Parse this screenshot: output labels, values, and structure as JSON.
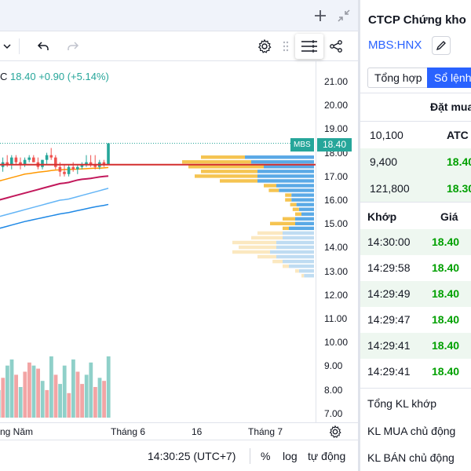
{
  "window": {
    "add_icon": "plus-icon",
    "collapse_icon": "collapse-arrows-icon"
  },
  "toolbar": {
    "undo_icon": "undo-icon",
    "redo_icon": "redo-icon",
    "settings_icon": "gear-icon",
    "drag_icon": "drag-handle-icon",
    "menu_icon": "hamburger-menu-icon",
    "share_icon": "share-icon"
  },
  "legend": {
    "symbol_fragment": "C",
    "price": "18.40",
    "change": "+0.90",
    "change_pct": "(+5.14%)",
    "color_up": "#26a69a"
  },
  "price_axis": {
    "ticks": [
      "21.00",
      "20.00",
      "19.00",
      "18.00",
      "17.00",
      "16.00",
      "15.00",
      "14.00",
      "13.00",
      "12.00",
      "11.00",
      "10.00",
      "9.00",
      "8.00",
      "7.00"
    ],
    "current_symbol": "MBS",
    "current_price": "18.40",
    "current_color": "#26a69a"
  },
  "time_axis": {
    "labels": [
      "ng Năm",
      "Tháng 6",
      "16",
      "Tháng 7"
    ],
    "settings_icon": "gear-icon"
  },
  "bottom_bar": {
    "time": "14:30:25 (UTC+7)",
    "percent": "%",
    "log": "log",
    "auto": "tự động"
  },
  "chart_data": {
    "type": "candlestick",
    "symbol": "MBS",
    "last_price": 18.4,
    "ylim": [
      7.0,
      21.0
    ],
    "ref_line": 17.5,
    "candles": [
      {
        "o": 17.2,
        "h": 17.5,
        "l": 16.9,
        "c": 17.4
      },
      {
        "o": 17.4,
        "h": 17.8,
        "l": 17.2,
        "c": 17.6
      },
      {
        "o": 17.6,
        "h": 17.9,
        "l": 17.4,
        "c": 17.5
      },
      {
        "o": 17.5,
        "h": 17.9,
        "l": 17.3,
        "c": 17.8
      },
      {
        "o": 17.8,
        "h": 17.9,
        "l": 17.5,
        "c": 17.6
      },
      {
        "o": 17.6,
        "h": 17.8,
        "l": 17.3,
        "c": 17.5
      },
      {
        "o": 17.5,
        "h": 17.8,
        "l": 17.4,
        "c": 17.7
      },
      {
        "o": 17.7,
        "h": 17.9,
        "l": 17.6,
        "c": 17.8
      },
      {
        "o": 17.8,
        "h": 17.9,
        "l": 17.6,
        "c": 17.6
      },
      {
        "o": 17.6,
        "h": 17.8,
        "l": 17.3,
        "c": 17.4
      },
      {
        "o": 17.4,
        "h": 17.7,
        "l": 17.3,
        "c": 17.7
      },
      {
        "o": 17.7,
        "h": 18.0,
        "l": 17.5,
        "c": 17.9
      },
      {
        "o": 17.9,
        "h": 18.2,
        "l": 17.7,
        "c": 17.8
      },
      {
        "o": 17.8,
        "h": 17.9,
        "l": 17.3,
        "c": 17.4
      },
      {
        "o": 17.4,
        "h": 17.6,
        "l": 17.0,
        "c": 17.2
      },
      {
        "o": 17.2,
        "h": 17.5,
        "l": 17.0,
        "c": 17.1
      },
      {
        "o": 17.1,
        "h": 17.5,
        "l": 17.0,
        "c": 17.4
      },
      {
        "o": 17.4,
        "h": 17.6,
        "l": 17.2,
        "c": 17.3
      },
      {
        "o": 17.3,
        "h": 17.5,
        "l": 17.1,
        "c": 17.4
      },
      {
        "o": 17.4,
        "h": 17.6,
        "l": 17.3,
        "c": 17.5
      },
      {
        "o": 17.5,
        "h": 17.9,
        "l": 17.4,
        "c": 17.6
      },
      {
        "o": 17.6,
        "h": 17.9,
        "l": 17.4,
        "c": 17.5
      },
      {
        "o": 17.5,
        "h": 17.9,
        "l": 17.3,
        "c": 17.4
      },
      {
        "o": 17.4,
        "h": 17.7,
        "l": 17.3,
        "c": 17.6
      },
      {
        "o": 17.6,
        "h": 17.7,
        "l": 17.4,
        "c": 17.5
      },
      {
        "o": 17.5,
        "h": 18.4,
        "l": 17.5,
        "c": 18.4
      }
    ],
    "ma_lines": [
      {
        "color": "#ff9800",
        "values": [
          16.8,
          16.85,
          16.9,
          16.95,
          17.0,
          17.05,
          17.1,
          17.12,
          17.15,
          17.18,
          17.2,
          17.22,
          17.25,
          17.27,
          17.28,
          17.29,
          17.3,
          17.3,
          17.31,
          17.32,
          17.33,
          17.34,
          17.35,
          17.35,
          17.36,
          17.38
        ]
      },
      {
        "color": "#c2185b",
        "values": [
          16.0,
          16.05,
          16.1,
          16.15,
          16.2,
          16.25,
          16.3,
          16.35,
          16.4,
          16.45,
          16.5,
          16.55,
          16.6,
          16.65,
          16.7,
          16.72,
          16.75,
          16.8,
          16.85,
          16.88,
          16.9,
          16.92,
          16.95,
          16.98,
          17.0,
          17.02
        ]
      },
      {
        "color": "#64b5f6",
        "values": [
          15.3,
          15.35,
          15.4,
          15.45,
          15.5,
          15.55,
          15.6,
          15.65,
          15.7,
          15.75,
          15.8,
          15.85,
          15.9,
          15.95,
          16.0,
          16.02,
          16.05,
          16.1,
          16.15,
          16.2,
          16.25,
          16.3,
          16.35,
          16.4,
          16.45,
          16.5
        ]
      },
      {
        "color": "#1e88e5",
        "values": [
          14.8,
          14.85,
          14.9,
          14.95,
          15.0,
          15.05,
          15.1,
          15.14,
          15.18,
          15.22,
          15.26,
          15.3,
          15.34,
          15.38,
          15.42,
          15.45,
          15.48,
          15.52,
          15.56,
          15.6,
          15.64,
          15.68,
          15.72,
          15.75,
          15.78,
          15.82
        ]
      }
    ],
    "volume": [
      {
        "v": 0.45,
        "up": true
      },
      {
        "v": 0.65,
        "up": false
      },
      {
        "v": 0.85,
        "up": true
      },
      {
        "v": 0.95,
        "up": true
      },
      {
        "v": 0.7,
        "up": false
      },
      {
        "v": 0.5,
        "up": true
      },
      {
        "v": 0.75,
        "up": false
      },
      {
        "v": 0.9,
        "up": false
      },
      {
        "v": 0.85,
        "up": true
      },
      {
        "v": 0.8,
        "up": false
      },
      {
        "v": 0.6,
        "up": true
      },
      {
        "v": 0.45,
        "up": false
      },
      {
        "v": 1.0,
        "up": true
      },
      {
        "v": 0.7,
        "up": false
      },
      {
        "v": 0.55,
        "up": true
      },
      {
        "v": 0.85,
        "up": true
      },
      {
        "v": 0.4,
        "up": false
      },
      {
        "v": 0.95,
        "up": true
      },
      {
        "v": 0.75,
        "up": false
      },
      {
        "v": 0.55,
        "up": false
      },
      {
        "v": 0.7,
        "up": true
      },
      {
        "v": 0.9,
        "up": true
      },
      {
        "v": 0.5,
        "up": false
      },
      {
        "v": 0.65,
        "up": true
      },
      {
        "v": 0.6,
        "up": false
      },
      {
        "v": 1.0,
        "up": true
      }
    ],
    "volume_profile": [
      {
        "price": 17.8,
        "up": 0.35,
        "down": 0.55,
        "faded": false
      },
      {
        "price": 17.6,
        "up": 0.55,
        "down": 0.5,
        "faded": false
      },
      {
        "price": 17.4,
        "up": 0.6,
        "down": 0.4,
        "faded": false
      },
      {
        "price": 17.2,
        "up": 0.45,
        "down": 0.45,
        "faded": false
      },
      {
        "price": 17.0,
        "up": 0.5,
        "down": 0.45,
        "faded": false
      },
      {
        "price": 16.8,
        "up": 0.3,
        "down": 0.45,
        "faded": false
      },
      {
        "price": 16.6,
        "up": 0.1,
        "down": 0.3,
        "faded": false
      },
      {
        "price": 16.4,
        "up": 0.08,
        "down": 0.28,
        "faded": false
      },
      {
        "price": 16.2,
        "up": 0.05,
        "down": 0.18,
        "faded": false
      },
      {
        "price": 16.0,
        "up": 0.05,
        "down": 0.18,
        "faded": false
      },
      {
        "price": 15.8,
        "up": 0.05,
        "down": 0.14,
        "faded": false
      },
      {
        "price": 15.6,
        "up": 0.05,
        "down": 0.12,
        "faded": false
      },
      {
        "price": 15.4,
        "up": 0.05,
        "down": 0.1,
        "faded": false
      },
      {
        "price": 15.2,
        "up": 0.1,
        "down": 0.15,
        "faded": false
      },
      {
        "price": 15.0,
        "up": 0.2,
        "down": 0.15,
        "faded": false
      },
      {
        "price": 14.8,
        "up": 0.05,
        "down": 0.2,
        "faded": false
      },
      {
        "price": 14.6,
        "up": 0.2,
        "down": 0.25,
        "faded": true
      },
      {
        "price": 14.4,
        "up": 0.25,
        "down": 0.25,
        "faded": true
      },
      {
        "price": 14.2,
        "up": 0.35,
        "down": 0.3,
        "faded": true
      },
      {
        "price": 14.0,
        "up": 0.3,
        "down": 0.3,
        "faded": true
      },
      {
        "price": 13.8,
        "up": 0.3,
        "down": 0.35,
        "faded": true
      },
      {
        "price": 13.6,
        "up": 0.15,
        "down": 0.3,
        "faded": true
      },
      {
        "price": 13.4,
        "up": 0.08,
        "down": 0.25,
        "faded": true
      },
      {
        "price": 13.2,
        "up": 0.05,
        "down": 0.2,
        "faded": true
      },
      {
        "price": 13.0,
        "up": 0.03,
        "down": 0.12,
        "faded": true
      },
      {
        "price": 12.8,
        "up": 0.02,
        "down": 0.08,
        "faded": true
      }
    ]
  },
  "panel": {
    "title": "CTCP Chứng kho",
    "symbol": "MBS:HNX",
    "edit_icon": "pencil-icon",
    "tabs": [
      "Tổng hợp",
      "Sổ lệnh"
    ],
    "active_tab": 1,
    "bid_header": "Đặt mua",
    "bids": [
      {
        "vol": "10,100",
        "price": "ATC",
        "color": "#131722"
      },
      {
        "vol": "9,400",
        "price": "18.40",
        "color": "#00a000"
      },
      {
        "vol": "121,800",
        "price": "18.30",
        "color": "#00a000"
      }
    ],
    "matched_headers": [
      "Khớp",
      "Giá"
    ],
    "matched": [
      {
        "time": "14:30:00",
        "price": "18.40"
      },
      {
        "time": "14:29:58",
        "price": "18.40"
      },
      {
        "time": "14:29:49",
        "price": "18.40"
      },
      {
        "time": "14:29:47",
        "price": "18.40"
      },
      {
        "time": "14:29:41",
        "price": "18.40"
      },
      {
        "time": "14:29:41",
        "price": "18.40"
      }
    ],
    "summary": [
      "Tổng KL khớp",
      "KL MUA chủ động",
      "KL BÁN chủ động"
    ]
  }
}
